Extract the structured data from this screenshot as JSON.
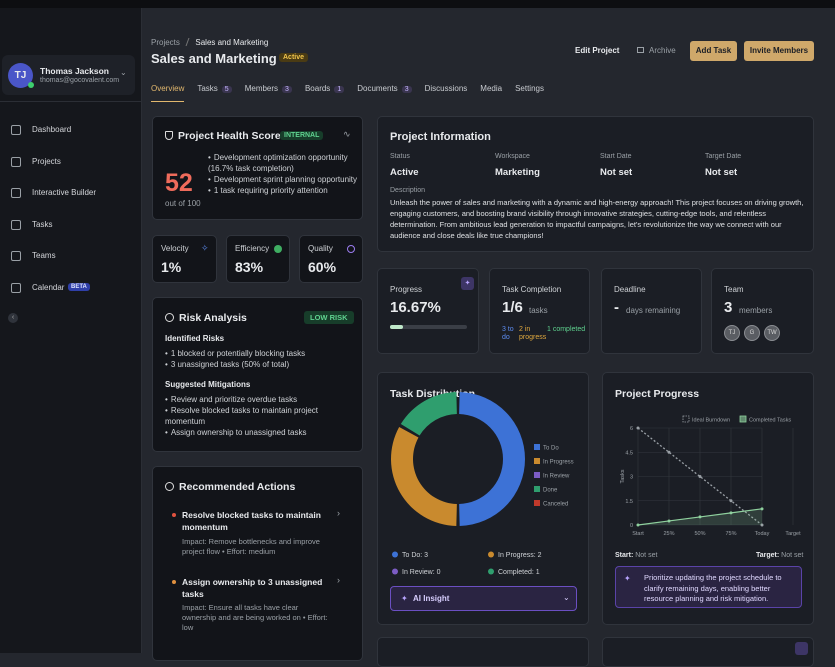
{
  "sidebar": {
    "user": {
      "initials": "TJ",
      "name": "Thomas Jackson",
      "email": "thomas@gocovalent.com"
    },
    "nav": [
      {
        "label": "Dashboard"
      },
      {
        "label": "Projects"
      },
      {
        "label": "Interactive Builder"
      },
      {
        "label": "Tasks"
      },
      {
        "label": "Teams"
      },
      {
        "label": "Calendar",
        "badge": "BETA"
      }
    ]
  },
  "header": {
    "breadcrumb": [
      "Projects",
      "Sales and Marketing"
    ],
    "title": "Sales and Marketing",
    "status": "Active",
    "actions": [
      "Edit Project",
      "Archive",
      "Add Task",
      "Invite Members"
    ]
  },
  "tabs": [
    {
      "label": "Overview"
    },
    {
      "label": "Tasks",
      "count": 5
    },
    {
      "label": "Members",
      "count": 3
    },
    {
      "label": "Boards",
      "count": 1
    },
    {
      "label": "Documents",
      "count": 3
    },
    {
      "label": "Discussions"
    },
    {
      "label": "Media"
    },
    {
      "label": "Settings"
    }
  ],
  "health": {
    "title": "Project Health Score",
    "badge": "INTERNAL",
    "score": 52,
    "score_caption": "out of 100",
    "bullets": [
      "Development optimization opportunity (16.7% task completion)",
      "Development sprint planning opportunity",
      "1 task requiring priority attention"
    ]
  },
  "metrics": [
    {
      "label": "Velocity",
      "value": "1%"
    },
    {
      "label": "Efficiency",
      "value": "83%"
    },
    {
      "label": "Quality",
      "value": "60%"
    }
  ],
  "risk": {
    "title": "Risk Analysis",
    "badge": "LOW RISK",
    "identified_title": "Identified Risks",
    "identified": [
      "1 blocked or potentially blocking tasks",
      "3 unassigned tasks (50% of total)"
    ],
    "mitigations_title": "Suggested Mitigations",
    "mitigations": [
      "Review and prioritize overdue tasks",
      "Resolve blocked tasks to maintain project momentum",
      "Assign ownership to unassigned tasks"
    ]
  },
  "recommended": {
    "title": "Recommended Actions",
    "items": [
      {
        "title": "Resolve blocked tasks to maintain momentum",
        "impact": "Impact: Remove bottlenecks and improve project flow • Effort: medium"
      },
      {
        "title": "Assign ownership to 3 unassigned tasks",
        "impact": "Impact: Ensure all tasks have clear ownership and are being worked on • Effort: low"
      }
    ]
  },
  "info": {
    "title": "Project Information",
    "fields": [
      {
        "label": "Status",
        "value": "Active"
      },
      {
        "label": "Workspace",
        "value": "Marketing"
      },
      {
        "label": "Start Date",
        "value": "Not set"
      },
      {
        "label": "Target Date",
        "value": "Not set"
      }
    ],
    "description_label": "Description",
    "description": "Unleash the power of sales and marketing with a dynamic and high-energy approach! This project focuses on driving growth, engaging customers, and boosting brand visibility through innovative strategies, cutting-edge tools, and relentless determination. From ambitious lead generation to impactful campaigns, let's revolutionize the way we connect with our audience and close deals like true champions!"
  },
  "stats": {
    "progress": {
      "label": "Progress",
      "value": 16.67,
      "value_label": "16.67%"
    },
    "completion": {
      "label": "Task Completion",
      "value": "1/6",
      "unit": "tasks",
      "breakdown": [
        "3 to do",
        "2 in progress",
        "1 completed"
      ]
    },
    "deadline": {
      "label": "Deadline",
      "value": "-",
      "unit": "days remaining"
    },
    "team": {
      "label": "Team",
      "value": 3,
      "unit": "members",
      "avatars": [
        "TJ",
        "G",
        "TW"
      ]
    }
  },
  "chart_data": [
    {
      "type": "pie",
      "title": "Task Distribution",
      "donut": true,
      "categories": [
        "To Do",
        "In Progress",
        "In Review",
        "Done",
        "Canceled"
      ],
      "values": [
        3,
        2,
        0,
        1,
        0
      ],
      "colors": [
        "#3d72d6",
        "#c98a2e",
        "#7c5cc4",
        "#2f9e6e",
        "#c0392b"
      ],
      "summary": [
        "To Do: 3",
        "In Progress: 2",
        "In Review: 0",
        "Completed: 1"
      ],
      "insight_button": "AI Insight"
    },
    {
      "type": "line",
      "title": "Project Progress",
      "categories": [
        "Start",
        "25%",
        "50%",
        "75%",
        "Today",
        "Target"
      ],
      "series": [
        {
          "name": "Ideal Burndown",
          "color": "#9aa0a6",
          "values": [
            6,
            4.5,
            3,
            1.5,
            0,
            null
          ]
        },
        {
          "name": "Completed Tasks",
          "color": "#8fd19e",
          "values": [
            0,
            0.25,
            0.5,
            0.75,
            1,
            null
          ]
        }
      ],
      "ylim": [
        0,
        6
      ],
      "yticks": [
        0,
        1.5,
        3,
        4.5,
        6
      ],
      "ylabel": "Tasks",
      "grid": true,
      "footer": {
        "start_label": "Start:",
        "start_value": "Not set",
        "target_label": "Target:",
        "target_value": "Not set"
      },
      "insight": "Prioritize updating the project schedule to clarify remaining days, enabling better resource planning and risk mitigation."
    }
  ]
}
